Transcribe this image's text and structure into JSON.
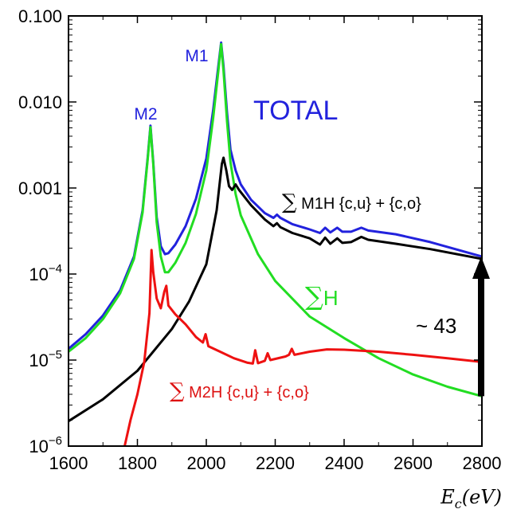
{
  "chart_data": {
    "type": "line",
    "title": "",
    "xlabel": "E_c(eV)",
    "xlabel_parts": {
      "main": "E",
      "sub": "c",
      "unit": "(eV)"
    },
    "ylabel": "",
    "y_scale": "log",
    "xlim": [
      1600,
      2800
    ],
    "ylim": [
      1e-06,
      0.1
    ],
    "grid": false,
    "x_ticks": [
      1600,
      1800,
      2000,
      2200,
      2400,
      2600,
      2800
    ],
    "x_tick_labels": [
      "1600",
      "1800",
      "2000",
      "2200",
      "2400",
      "2600",
      "2800"
    ],
    "y_ticks": [
      {
        "value": 0.1,
        "base": "0.100",
        "exp": ""
      },
      {
        "value": 0.01,
        "base": "0.010",
        "exp": ""
      },
      {
        "value": 0.001,
        "base": "0.001",
        "exp": ""
      },
      {
        "value": 0.0001,
        "base": "10",
        "exp": "−4"
      },
      {
        "value": 1e-05,
        "base": "10",
        "exp": "−5"
      },
      {
        "value": 1e-06,
        "base": "10",
        "exp": "−6"
      }
    ],
    "series": [
      {
        "key": "total",
        "color": "#2222dd",
        "points": [
          [
            1600,
            1.35e-05
          ],
          [
            1650,
            2e-05
          ],
          [
            1700,
            3.3e-05
          ],
          [
            1750,
            6.5e-05
          ],
          [
            1790,
            0.00016
          ],
          [
            1815,
            0.00055
          ],
          [
            1830,
            0.0023
          ],
          [
            1838,
            0.0053
          ],
          [
            1846,
            0.002
          ],
          [
            1856,
            0.00046
          ],
          [
            1868,
            0.00021
          ],
          [
            1880,
            0.00017
          ],
          [
            1890,
            0.000175
          ],
          [
            1910,
            0.00022
          ],
          [
            1940,
            0.00036
          ],
          [
            1970,
            0.00075
          ],
          [
            2000,
            0.0022
          ],
          [
            2020,
            0.008
          ],
          [
            2035,
            0.026
          ],
          [
            2043,
            0.049
          ],
          [
            2050,
            0.026
          ],
          [
            2060,
            0.0075
          ],
          [
            2070,
            0.0028
          ],
          [
            2085,
            0.0016
          ],
          [
            2100,
            0.0011
          ],
          [
            2130,
            0.00073
          ],
          [
            2170,
            0.00051
          ],
          [
            2195,
            0.00045
          ],
          [
            2205,
            0.00049
          ],
          [
            2215,
            0.00045
          ],
          [
            2250,
            0.00038
          ],
          [
            2300,
            0.00033
          ],
          [
            2330,
            0.0003
          ],
          [
            2345,
            0.000345
          ],
          [
            2360,
            0.000305
          ],
          [
            2380,
            0.000345
          ],
          [
            2395,
            0.00031
          ],
          [
            2420,
            0.00031
          ],
          [
            2450,
            0.000345
          ],
          [
            2470,
            0.00032
          ],
          [
            2550,
            0.00029
          ],
          [
            2650,
            0.000235
          ],
          [
            2800,
            0.00016
          ]
        ]
      },
      {
        "key": "sum_h",
        "color": "#22dd22",
        "points": [
          [
            1600,
            1.25e-05
          ],
          [
            1650,
            1.8e-05
          ],
          [
            1700,
            3e-05
          ],
          [
            1750,
            6e-05
          ],
          [
            1790,
            0.00015
          ],
          [
            1815,
            0.00052
          ],
          [
            1830,
            0.0022
          ],
          [
            1838,
            0.0051
          ],
          [
            1846,
            0.0019
          ],
          [
            1856,
            0.0004
          ],
          [
            1868,
            0.00016
          ],
          [
            1880,
            0.000105
          ],
          [
            1890,
            0.000105
          ],
          [
            1910,
            0.000135
          ],
          [
            1940,
            0.00023
          ],
          [
            1970,
            0.0005
          ],
          [
            2000,
            0.0016
          ],
          [
            2020,
            0.0065
          ],
          [
            2035,
            0.023
          ],
          [
            2043,
            0.047
          ],
          [
            2050,
            0.023
          ],
          [
            2060,
            0.006
          ],
          [
            2070,
            0.002
          ],
          [
            2085,
            0.00085
          ],
          [
            2100,
            0.00048
          ],
          [
            2150,
            0.00017
          ],
          [
            2200,
            8.3e-05
          ],
          [
            2300,
            3.2e-05
          ],
          [
            2400,
            1.8e-05
          ],
          [
            2500,
            1.05e-05
          ],
          [
            2600,
            6.8e-06
          ],
          [
            2700,
            4.9e-06
          ],
          [
            2800,
            3.8e-06
          ]
        ]
      },
      {
        "key": "sum_m1h",
        "color": "#000000",
        "points": [
          [
            1600,
            1.95e-06
          ],
          [
            1700,
            3.5e-06
          ],
          [
            1800,
            7.5e-06
          ],
          [
            1900,
            2.3e-05
          ],
          [
            1950,
            4.8e-05
          ],
          [
            2000,
            0.00013
          ],
          [
            2030,
            0.00055
          ],
          [
            2045,
            0.0019
          ],
          [
            2050,
            0.00225
          ],
          [
            2058,
            0.0016
          ],
          [
            2066,
            0.00105
          ],
          [
            2075,
            0.00095
          ],
          [
            2085,
            0.0011
          ],
          [
            2095,
            0.00095
          ],
          [
            2130,
            0.00063
          ],
          [
            2170,
            0.00043
          ],
          [
            2195,
            0.00036
          ],
          [
            2205,
            0.00039
          ],
          [
            2215,
            0.00035
          ],
          [
            2250,
            0.0003
          ],
          [
            2300,
            0.00026
          ],
          [
            2330,
            0.00022
          ],
          [
            2345,
            0.000265
          ],
          [
            2360,
            0.000225
          ],
          [
            2380,
            0.00026
          ],
          [
            2395,
            0.00023
          ],
          [
            2420,
            0.000235
          ],
          [
            2450,
            0.00027
          ],
          [
            2470,
            0.00025
          ],
          [
            2550,
            0.000225
          ],
          [
            2650,
            0.000195
          ],
          [
            2800,
            0.00015
          ]
        ]
      },
      {
        "key": "sum_m2h",
        "color": "#ee1111",
        "points": [
          [
            1763,
            1e-06
          ],
          [
            1780,
            2e-06
          ],
          [
            1800,
            4e-06
          ],
          [
            1820,
            9.5e-06
          ],
          [
            1835,
            3.5e-05
          ],
          [
            1841,
            0.00019
          ],
          [
            1846,
            0.000105
          ],
          [
            1856,
            5.2e-05
          ],
          [
            1868,
            4e-05
          ],
          [
            1878,
            6.2e-05
          ],
          [
            1884,
            7.3e-05
          ],
          [
            1890,
            4.3e-05
          ],
          [
            1910,
            3.4e-05
          ],
          [
            1940,
            2.6e-05
          ],
          [
            1970,
            1.85e-05
          ],
          [
            1990,
            1.6e-05
          ],
          [
            1998,
            2e-05
          ],
          [
            2006,
            1.45e-05
          ],
          [
            2040,
            1.25e-05
          ],
          [
            2080,
            1.05e-05
          ],
          [
            2120,
            9.3e-06
          ],
          [
            2135,
            9.1e-06
          ],
          [
            2142,
            1.3e-05
          ],
          [
            2150,
            9.2e-06
          ],
          [
            2170,
            9.8e-06
          ],
          [
            2178,
            1.2e-05
          ],
          [
            2186,
            1e-05
          ],
          [
            2230,
            1.1e-05
          ],
          [
            2240,
            1.15e-05
          ],
          [
            2248,
            1.35e-05
          ],
          [
            2256,
            1.15e-05
          ],
          [
            2300,
            1.25e-05
          ],
          [
            2350,
            1.33e-05
          ],
          [
            2400,
            1.32e-05
          ],
          [
            2500,
            1.25e-05
          ],
          [
            2600,
            1.15e-05
          ],
          [
            2700,
            1.05e-05
          ],
          [
            2800,
            9.5e-06
          ]
        ]
      }
    ],
    "annotations": [
      {
        "key": "m1",
        "text": "M1",
        "color": "#2222dd"
      },
      {
        "key": "m2",
        "text": "M2",
        "color": "#2222dd"
      },
      {
        "key": "total",
        "text": "TOTAL",
        "color": "#2222dd"
      },
      {
        "key": "m1h",
        "sym": "∑",
        "text": " M1H {c,u} + {c,o}",
        "color": "#000000"
      },
      {
        "key": "h",
        "sym": "∑",
        "text": "H",
        "color": "#22dd22"
      },
      {
        "key": "m2h",
        "sym": "∑",
        "text": " M2H {c,u} + {c,o}",
        "color": "#dd1111"
      },
      {
        "key": "ratio",
        "text": "~ 43",
        "color": "#000000"
      }
    ],
    "arrow": {
      "x": 2800,
      "from": 3.8e-06,
      "to": 0.00016,
      "color": "#000000"
    }
  }
}
